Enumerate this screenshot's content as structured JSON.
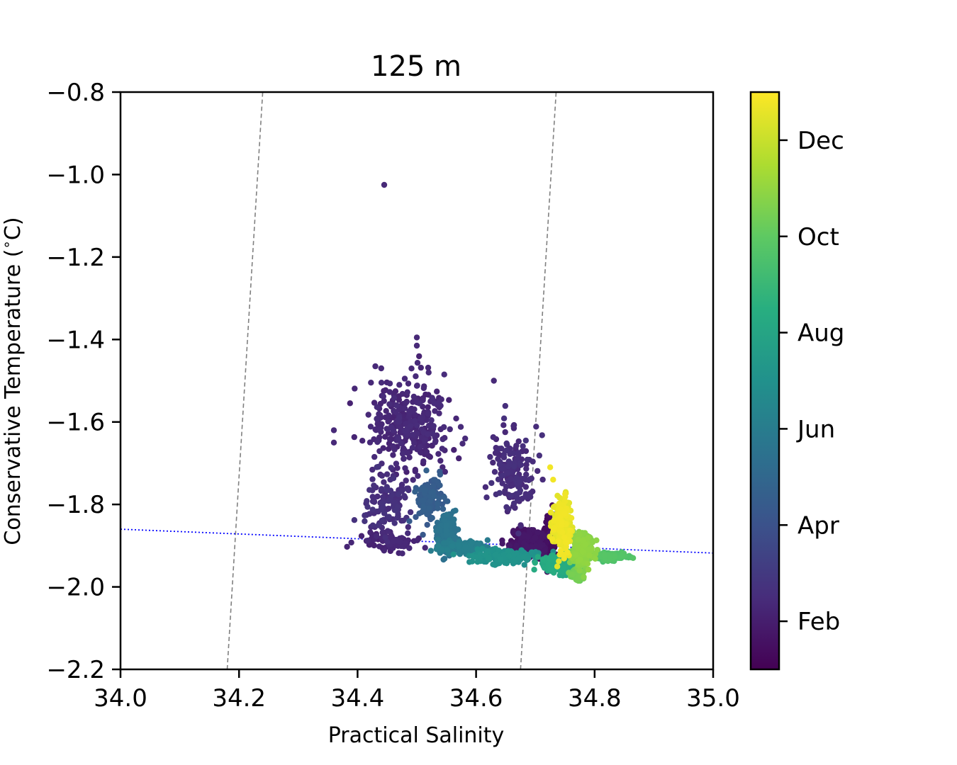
{
  "chart_data": {
    "type": "scatter",
    "title": "125 m",
    "xlabel": "Practical Salinity",
    "ylabel": "Conservative Temperature ($^\\circ$C)",
    "xlim": [
      34.0,
      35.0
    ],
    "ylim": [
      -2.2,
      -0.8
    ],
    "x_ticks": [
      "34.0",
      "34.2",
      "34.4",
      "34.6",
      "34.8",
      "35.0"
    ],
    "y_ticks": [
      "−0.8",
      "−1.0",
      "−1.2",
      "−1.4",
      "−1.6",
      "−1.8",
      "−2.0",
      "−2.2"
    ],
    "grid": false,
    "colormap": "viridis",
    "colorbar": {
      "ticks": [
        "Feb",
        "Apr",
        "Jun",
        "Aug",
        "Oct",
        "Dec"
      ],
      "tick_positions": [
        1,
        3,
        5,
        7,
        9,
        11
      ],
      "range": [
        0,
        12
      ]
    },
    "clusters": [
      {
        "month": 1.3,
        "x_center": 34.49,
        "y_center": -1.6,
        "x_spread": 0.06,
        "y_spread": 0.1,
        "count": 320
      },
      {
        "month": 1.6,
        "x_center": 34.45,
        "y_center": -1.8,
        "x_spread": 0.04,
        "y_spread": 0.06,
        "count": 120
      },
      {
        "month": 1.5,
        "x_center": 34.66,
        "y_center": -1.72,
        "x_spread": 0.03,
        "y_spread": 0.1,
        "count": 160
      },
      {
        "month": 1.2,
        "x_center": 34.45,
        "y_center": -1.89,
        "x_spread": 0.05,
        "y_spread": 0.02,
        "count": 80
      },
      {
        "month": 0.6,
        "x_center": 34.69,
        "y_center": -1.89,
        "x_spread": 0.03,
        "y_spread": 0.03,
        "count": 260
      },
      {
        "month": 0.2,
        "x_center": 34.725,
        "y_center": -1.89,
        "x_spread": 0.008,
        "y_spread": 0.05,
        "count": 200
      },
      {
        "month": 3.5,
        "x_center": 34.52,
        "y_center": -1.79,
        "x_spread": 0.02,
        "y_spread": 0.05,
        "count": 110
      },
      {
        "month": 4.5,
        "x_center": 34.55,
        "y_center": -1.87,
        "x_spread": 0.015,
        "y_spread": 0.04,
        "count": 180
      },
      {
        "month": 5.0,
        "x_center": 34.58,
        "y_center": -1.905,
        "x_spread": 0.04,
        "y_spread": 0.012,
        "count": 160
      },
      {
        "month": 6.0,
        "x_center": 34.65,
        "y_center": -1.925,
        "x_spread": 0.05,
        "y_spread": 0.015,
        "count": 260
      },
      {
        "month": 7.2,
        "x_center": 34.74,
        "y_center": -1.945,
        "x_spread": 0.03,
        "y_spread": 0.02,
        "count": 200
      },
      {
        "month": 11.6,
        "x_center": 34.745,
        "y_center": -1.85,
        "x_spread": 0.012,
        "y_spread": 0.06,
        "count": 260
      },
      {
        "month": 9.8,
        "x_center": 34.78,
        "y_center": -1.91,
        "x_spread": 0.015,
        "y_spread": 0.035,
        "count": 260
      },
      {
        "month": 8.6,
        "x_center": 34.82,
        "y_center": -1.925,
        "x_spread": 0.03,
        "y_spread": 0.008,
        "count": 160
      },
      {
        "month": 9.3,
        "x_center": 34.77,
        "y_center": -1.97,
        "x_spread": 0.01,
        "y_spread": 0.015,
        "count": 50
      }
    ],
    "outliers": [
      {
        "x": 34.445,
        "y": -1.025,
        "month": 1.4
      },
      {
        "x": 34.5,
        "y": -1.395,
        "month": 1.4
      },
      {
        "x": 34.5,
        "y": -1.415,
        "month": 1.4
      },
      {
        "x": 34.43,
        "y": -1.465,
        "month": 1.4
      },
      {
        "x": 34.44,
        "y": -1.47,
        "month": 1.4
      },
      {
        "x": 34.52,
        "y": -1.48,
        "month": 1.4
      },
      {
        "x": 34.63,
        "y": -1.5,
        "month": 1.4
      },
      {
        "x": 34.36,
        "y": -1.62,
        "month": 1.4
      },
      {
        "x": 34.36,
        "y": -1.65,
        "month": 1.4
      },
      {
        "x": 34.725,
        "y": -1.71,
        "month": 11.8
      },
      {
        "x": 34.73,
        "y": -1.74,
        "month": 11.8
      },
      {
        "x": 34.865,
        "y": -1.93,
        "month": 8.8
      },
      {
        "x": 34.845,
        "y": -1.93,
        "month": 8.6
      }
    ],
    "reference_lines": [
      {
        "style": "dashed",
        "color": "#808080",
        "points": [
          [
            34.18,
            -2.2
          ],
          [
            34.24,
            -0.8
          ]
        ]
      },
      {
        "style": "dashed",
        "color": "#808080",
        "points": [
          [
            34.675,
            -2.2
          ],
          [
            34.735,
            -0.8
          ]
        ]
      },
      {
        "style": "dotted",
        "color": "#0000ff",
        "points": [
          [
            34.0,
            -1.86
          ],
          [
            35.0,
            -1.918
          ]
        ]
      }
    ]
  }
}
